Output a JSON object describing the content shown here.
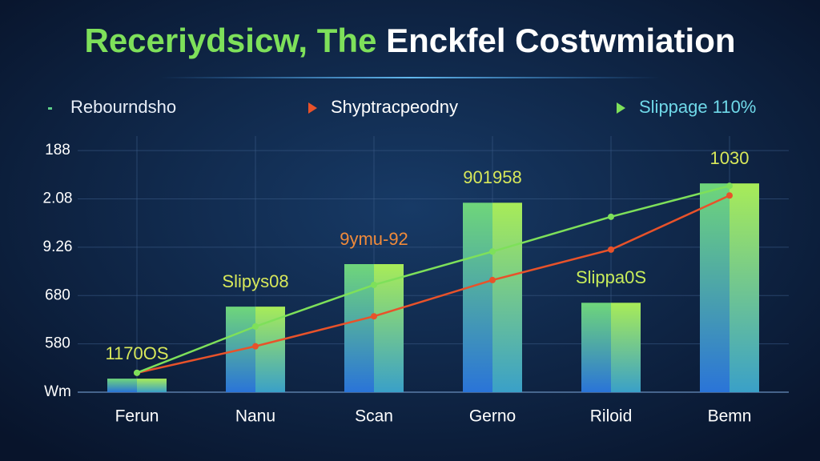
{
  "chart_data": {
    "type": "bar",
    "title": [
      "Receriydsicw, The",
      "Enckfel Costwmiation"
    ],
    "categories": [
      "Ferun",
      "Nanu",
      "Scan",
      "Gerno",
      "Riloid",
      "Bemn"
    ],
    "series": [
      {
        "name": "Rebourndsho",
        "type": "bar",
        "color": "#5fd08a",
        "values": [
          0.28,
          1.77,
          2.65,
          3.92,
          1.85,
          4.32
        ]
      },
      {
        "name": "Shyptracpeodny",
        "type": "line",
        "color": "#e8522a",
        "values": [
          0.4,
          0.95,
          1.57,
          2.32,
          2.95,
          4.07
        ]
      },
      {
        "name": "Slippage 110%",
        "type": "line",
        "color": "#7ee05a",
        "values": [
          0.4,
          1.36,
          2.22,
          2.91,
          3.63,
          4.27
        ]
      }
    ],
    "annotations": [
      {
        "text": "1170OS",
        "color": "#d8e85a"
      },
      {
        "text": "Slipys08",
        "color": "#d8e85a"
      },
      {
        "text": "9ymu-92",
        "color": "#f08a3a"
      },
      {
        "text": "901958",
        "color": "#d8e85a"
      },
      {
        "text": "Slippa0S",
        "color": "#c8ec5a"
      },
      {
        "text": "1030",
        "color": "#d8e85a"
      }
    ],
    "ylim": [
      0,
      5.3
    ],
    "yticks": [
      {
        "value": 0,
        "label": "Wm"
      },
      {
        "value": 1,
        "label": "580"
      },
      {
        "value": 2,
        "label": "680"
      },
      {
        "value": 3,
        "label": "9.26"
      },
      {
        "value": 4,
        "label": "2.08"
      },
      {
        "value": 5,
        "label": "188"
      }
    ],
    "grid": true
  }
}
